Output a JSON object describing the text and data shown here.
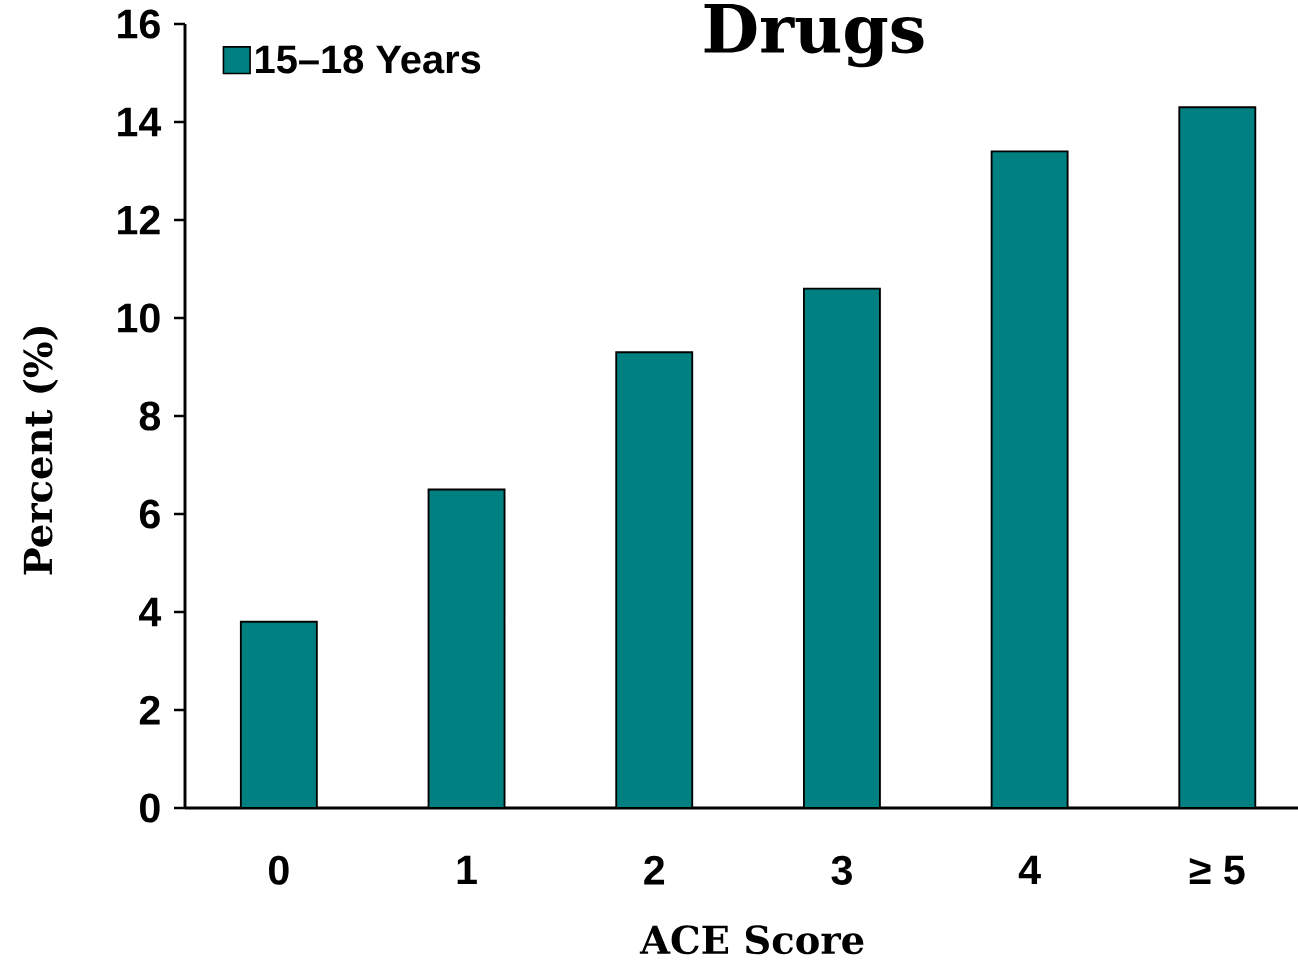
{
  "chart_data": {
    "type": "bar",
    "title": "Drugs",
    "xlabel": "ACE Score",
    "ylabel": "Percent (%)",
    "categories": [
      "0",
      "1",
      "2",
      "3",
      "4",
      "≥ 5"
    ],
    "series": [
      {
        "name": "15–18 Years",
        "color": "#008080",
        "values": [
          3.8,
          6.5,
          9.3,
          10.6,
          13.4,
          14.3
        ]
      }
    ],
    "ylim": [
      0,
      16
    ],
    "yticks": [
      0,
      2,
      4,
      6,
      8,
      10,
      12,
      14,
      16
    ],
    "legend": "top left",
    "grid": false
  }
}
